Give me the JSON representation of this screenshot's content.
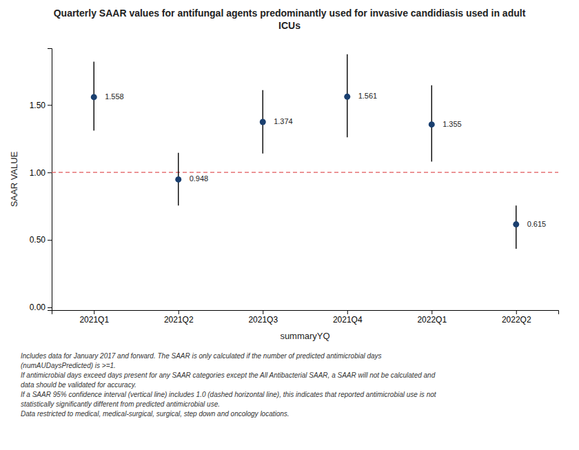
{
  "chart_data": {
    "type": "dot",
    "title": "Quarterly SAAR values for antifungal agents predominantly used for invasive candidiasis used in adult\nICUs",
    "xlabel": "summaryYQ",
    "ylabel": "SAAR VALUE",
    "categories": [
      "2021Q1",
      "2021Q2",
      "2021Q3",
      "2021Q4",
      "2022Q1",
      "2022Q2"
    ],
    "values": [
      1.558,
      0.948,
      1.374,
      1.561,
      1.355,
      0.615
    ],
    "ci_lower": [
      1.31,
      0.755,
      1.14,
      1.26,
      1.08,
      0.435
    ],
    "ci_upper": [
      1.82,
      1.145,
      1.61,
      1.875,
      1.645,
      0.755
    ],
    "ref_line": 1.0,
    "color": "#1a3f6f",
    "ylim": [
      -0.02,
      1.92
    ],
    "yticks": [
      {
        "value": 0.0,
        "label": "0.00"
      },
      {
        "value": 0.5,
        "label": "0.50"
      },
      {
        "value": 1.0,
        "label": "1.00"
      },
      {
        "value": 1.5,
        "label": "1.50"
      }
    ],
    "data_labels": true,
    "grid": false,
    "footnotes": [
      "Includes data for January 2017 and forward. The SAAR is only calculated if the number of predicted antimicrobial days",
      "(numAUDaysPredicted) is >=1.",
      "If antimicrobial days exceed days present for any SAAR categories except the All Antibacterial SAAR, a SAAR will not be calculated and",
      "data should be validated for accuracy.",
      "If a SAAR 95% confidence interval (vertical line) includes 1.0 (dashed horizontal line), this indicates that reported antimicrobial use is not",
      "statistically significantly different from predicted antimicrobial use.",
      "Data restricted to medical, medical-surgical, surgical, step down and oncology locations."
    ]
  }
}
